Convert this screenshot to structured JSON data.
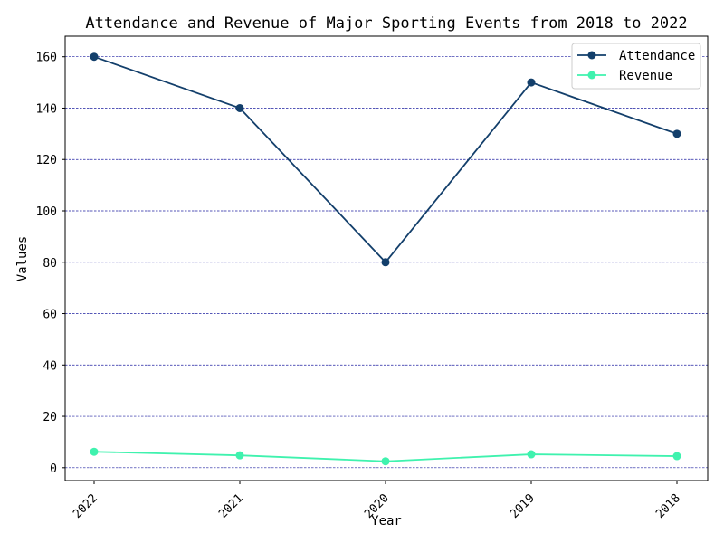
{
  "chart_data": {
    "type": "line",
    "title": "Attendance and Revenue of Major Sporting Events from 2018 to 2022",
    "xlabel": "Year",
    "ylabel": "Values",
    "categories": [
      "2022",
      "2021",
      "2020",
      "2019",
      "2018"
    ],
    "yticks": [
      0,
      20,
      40,
      60,
      80,
      100,
      120,
      140,
      160
    ],
    "ylim": [
      -5,
      168
    ],
    "grid": "horizontal, dashed",
    "legend_position": "top-right",
    "series": [
      {
        "name": "Attendance",
        "color": "#133f6b",
        "values": [
          160,
          140,
          80,
          150,
          130
        ]
      },
      {
        "name": "Revenue",
        "color": "#3ff2ae",
        "values": [
          6.2,
          4.8,
          2.5,
          5.2,
          4.5
        ]
      }
    ]
  }
}
